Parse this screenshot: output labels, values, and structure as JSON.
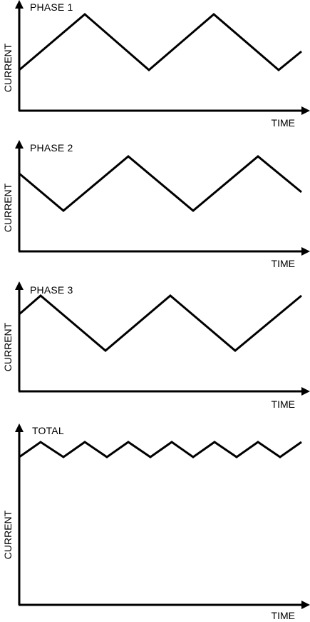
{
  "chart_data": [
    {
      "type": "line",
      "title": "PHASE 1",
      "xlabel": "TIME",
      "ylabel": "CURRENT",
      "xlim": [
        0,
        400
      ],
      "ylim": [
        0,
        150
      ],
      "grid": false,
      "series": [
        {
          "x": [
            0,
            92,
            182,
            273,
            364,
            396
          ],
          "y": [
            58,
            135,
            58,
            135,
            58,
            83
          ]
        }
      ]
    },
    {
      "type": "line",
      "title": "PHASE 2",
      "xlabel": "TIME",
      "ylabel": "CURRENT",
      "xlim": [
        0,
        400
      ],
      "ylim": [
        0,
        150
      ],
      "grid": false,
      "series": [
        {
          "x": [
            0,
            62,
            153,
            244,
            335,
            396
          ],
          "y": [
            108,
            57,
            132,
            57,
            132,
            83
          ]
        }
      ]
    },
    {
      "type": "line",
      "title": "PHASE 3",
      "xlabel": "TIME",
      "ylabel": "CURRENT",
      "xlim": [
        0,
        400
      ],
      "ylim": [
        0,
        150
      ],
      "grid": false,
      "series": [
        {
          "x": [
            0,
            30,
            121,
            212,
            303,
            396
          ],
          "y": [
            109,
            134,
            57,
            134,
            57,
            134
          ]
        }
      ]
    },
    {
      "type": "line",
      "title": "TOTAL",
      "xlabel": "TIME",
      "ylabel": "CURRENT",
      "xlim": [
        0,
        400
      ],
      "ylim": [
        0,
        230
      ],
      "grid": false,
      "series": [
        {
          "x": [
            0,
            30,
            62,
            92,
            123,
            153,
            184,
            214,
            244,
            274,
            305,
            335,
            366,
            396
          ],
          "y": [
            207,
            225,
            207,
            225,
            207,
            225,
            207,
            225,
            207,
            225,
            207,
            225,
            207,
            225
          ]
        }
      ]
    }
  ]
}
